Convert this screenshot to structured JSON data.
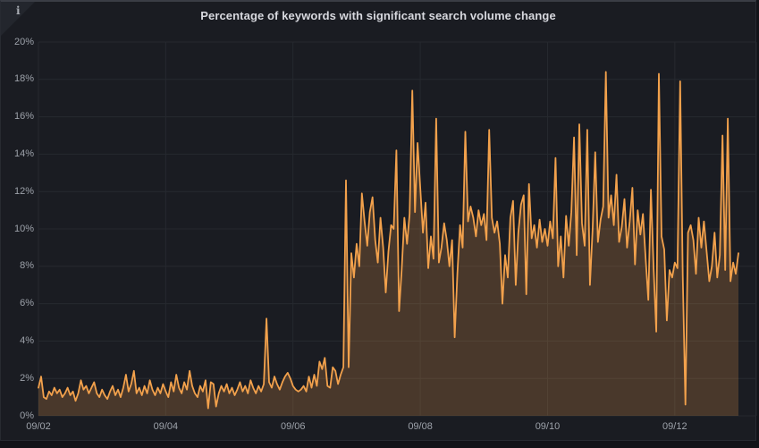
{
  "panel": {
    "title": "Percentage of keywords with significant search volume change",
    "info_icon": "i"
  },
  "colors": {
    "page_bg": "#121318",
    "panel_bg": "#1a1c22",
    "grid": "#26292f",
    "axis_text": "#9da2aa",
    "title_text": "#d8d9df",
    "line": "#f2a14c",
    "fill": "#f2a14c",
    "fill_opacity": 0.22
  },
  "chart_data": {
    "type": "area",
    "title": "Percentage of keywords with significant search volume change",
    "xlabel": "",
    "ylabel": "",
    "unit": "%",
    "grid": true,
    "legend": false,
    "x_axis": {
      "start": "09/02 00:00",
      "interval_hours": 1,
      "tick_labels": [
        "09/02",
        "09/04",
        "09/06",
        "09/08",
        "09/10",
        "09/12"
      ],
      "tick_day_offsets": [
        0,
        2,
        4,
        6,
        8,
        10
      ],
      "span_days": 11
    },
    "y_axis": {
      "min": 0,
      "max": 20,
      "tick_step": 2,
      "tick_labels": [
        "0%",
        "2%",
        "4%",
        "6%",
        "8%",
        "10%",
        "12%",
        "14%",
        "16%",
        "18%",
        "20%"
      ]
    },
    "series": [
      {
        "color": "#f2a14c",
        "fill_opacity": 0.22,
        "values": [
          1.5,
          2.1,
          1.0,
          0.9,
          1.3,
          1.1,
          1.5,
          1.2,
          1.4,
          1.0,
          1.2,
          1.5,
          1.1,
          1.3,
          0.8,
          1.2,
          1.9,
          1.4,
          1.6,
          1.2,
          1.5,
          1.8,
          1.2,
          1.0,
          1.4,
          1.1,
          0.9,
          1.3,
          1.6,
          1.1,
          1.4,
          1.0,
          1.5,
          2.2,
          1.3,
          1.7,
          2.4,
          1.2,
          1.5,
          1.1,
          1.6,
          1.2,
          1.9,
          1.4,
          1.1,
          1.5,
          1.2,
          1.7,
          1.3,
          1.0,
          1.8,
          1.3,
          2.2,
          1.5,
          1.2,
          1.8,
          1.4,
          2.4,
          1.6,
          1.2,
          1.0,
          1.6,
          1.3,
          1.9,
          0.4,
          1.8,
          1.7,
          0.5,
          1.2,
          1.6,
          1.3,
          1.7,
          1.2,
          1.5,
          1.1,
          1.4,
          1.8,
          1.3,
          1.6,
          1.2,
          1.9,
          1.5,
          1.2,
          1.6,
          1.3,
          1.7,
          5.2,
          1.8,
          1.5,
          2.1,
          1.7,
          1.4,
          1.8,
          2.1,
          2.3,
          2.0,
          1.6,
          1.4,
          1.3,
          1.4,
          1.6,
          1.3,
          2.1,
          1.5,
          2.2,
          1.6,
          2.9,
          2.5,
          3.1,
          1.6,
          1.5,
          2.6,
          2.4,
          1.7,
          2.2,
          2.6,
          12.6,
          2.6,
          8.7,
          7.4,
          9.2,
          8.0,
          11.9,
          10.4,
          9.1,
          10.9,
          11.7,
          9.4,
          8.2,
          10.6,
          9.0,
          6.6,
          8.8,
          10.2,
          10.0,
          14.2,
          5.6,
          7.8,
          10.6,
          9.2,
          10.8,
          17.4,
          10.9,
          14.6,
          12.2,
          9.8,
          11.4,
          7.9,
          9.6,
          8.4,
          15.9,
          8.2,
          9.0,
          10.3,
          9.4,
          8.0,
          9.4,
          4.2,
          7.6,
          10.2,
          9.0,
          15.2,
          10.4,
          11.2,
          10.6,
          9.6,
          11.0,
          10.2,
          10.8,
          9.4,
          15.3,
          10.6,
          9.8,
          10.4,
          9.2,
          6.0,
          8.6,
          7.4,
          10.6,
          11.5,
          7.0,
          9.8,
          11.3,
          11.8,
          6.5,
          12.4,
          9.5,
          10.2,
          9.0,
          10.5,
          9.3,
          10.0,
          9.1,
          10.4,
          9.5,
          13.8,
          8.0,
          9.6,
          7.4,
          10.7,
          9.1,
          10.9,
          14.9,
          8.6,
          15.6,
          10.3,
          9.1,
          15.3,
          7.0,
          10.0,
          14.1,
          9.3,
          10.5,
          11.2,
          18.4,
          10.6,
          11.8,
          10.2,
          12.9,
          9.3,
          10.1,
          11.6,
          9.0,
          10.4,
          12.2,
          8.1,
          11.0,
          9.7,
          10.8,
          8.4,
          6.2,
          12.1,
          7.9,
          4.5,
          18.3,
          9.6,
          8.9,
          5.1,
          7.8,
          7.4,
          8.2,
          7.9,
          17.9,
          7.5,
          0.6,
          9.8,
          10.2,
          9.4,
          7.6,
          10.6,
          9.0,
          10.4,
          8.8,
          7.2,
          8.0,
          9.8,
          7.4,
          8.6,
          15.0,
          7.8,
          15.9,
          7.2,
          8.2,
          7.6,
          8.7
        ]
      }
    ]
  }
}
